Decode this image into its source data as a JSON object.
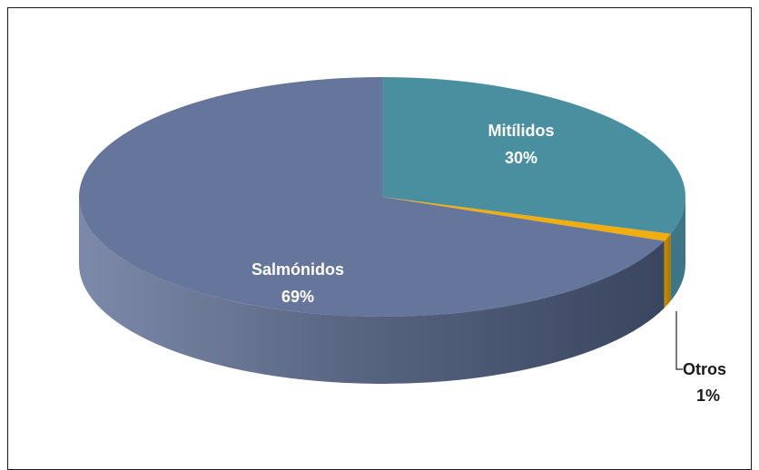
{
  "chart_data": {
    "type": "pie",
    "categories": [
      "Mitílidos",
      "Otros",
      "Salmónidos"
    ],
    "values": [
      30,
      1,
      69
    ],
    "labels": [
      "Mitílidos",
      "Otros",
      "Salmónidos"
    ],
    "percent_labels": [
      "30%",
      "1%",
      "69%"
    ],
    "colors": [
      "#4a8fa0",
      "#f2ad0e",
      "#66759b"
    ],
    "style": "3d",
    "legend": "none"
  }
}
